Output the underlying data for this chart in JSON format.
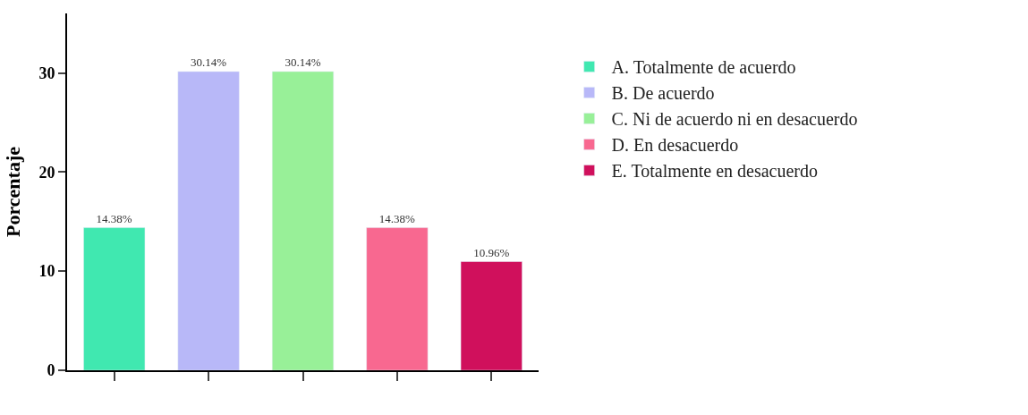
{
  "chart_data": {
    "type": "bar",
    "ylabel": "Porcentaje",
    "categories": [
      null,
      null,
      null,
      null,
      null
    ],
    "series": [
      {
        "name": "A. Totalmente de acuerdo",
        "color": "#40e8b0",
        "values": [
          14.38,
          null,
          null,
          null,
          null
        ],
        "value_labels": [
          "14.38%",
          null,
          null,
          null,
          null
        ]
      },
      {
        "name": "B. De acuerdo",
        "color": "#b8b8f8",
        "values": [
          null,
          30.14,
          null,
          null,
          null
        ],
        "value_labels": [
          null,
          "30.14%",
          null,
          null,
          null
        ]
      },
      {
        "name": "C. Ni de acuerdo ni en desacuerdo",
        "color": "#98f098",
        "values": [
          null,
          null,
          30.14,
          null,
          null
        ],
        "value_labels": [
          null,
          null,
          "30.14%",
          null,
          null
        ]
      },
      {
        "name": "D. En desacuerdo",
        "color": "#f86890",
        "values": [
          null,
          null,
          null,
          14.38,
          null
        ],
        "value_labels": [
          null,
          null,
          null,
          "14.38%",
          null
        ]
      },
      {
        "name": "E. Totalmente en desacuerdo",
        "color": "#d0105c",
        "values": [
          null,
          null,
          null,
          null,
          10.96
        ],
        "value_labels": [
          null,
          null,
          null,
          null,
          "10.96%"
        ]
      }
    ],
    "ylim": [
      0,
      36
    ],
    "yticks": [
      0,
      10,
      20,
      30
    ],
    "legend": "right"
  }
}
